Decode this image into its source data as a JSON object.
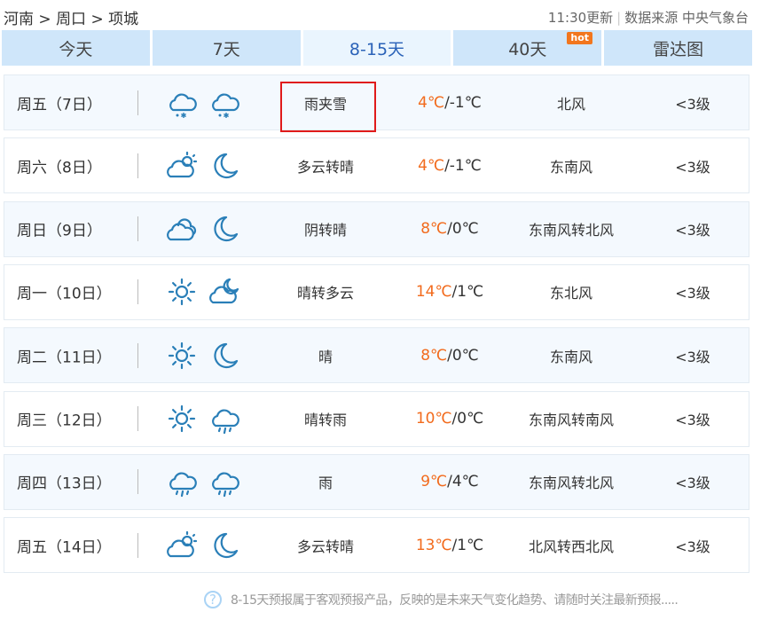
{
  "breadcrumb": {
    "province": "河南",
    "city": "周口",
    "county": "项城",
    "sep": ">"
  },
  "source": {
    "update": "11:30更新",
    "text": "数据来源 中央气象台"
  },
  "tabs": [
    {
      "label": "今天"
    },
    {
      "label": "7天"
    },
    {
      "label": "8-15天",
      "active": true
    },
    {
      "label": "40天",
      "badge": "hot"
    },
    {
      "label": "雷达图"
    }
  ],
  "colors": {
    "accent": "#2a62b8",
    "high_temp": "#f26b1d",
    "tab_bg": "#cfe6fa",
    "highlight": "#e01b1b"
  },
  "rows": [
    {
      "day": "周五（7日）",
      "icons": [
        "snow-rain",
        "snow-rain"
      ],
      "weather": "雨夹雪",
      "high": "4℃",
      "low": "/-1℃",
      "wind": "北风",
      "level": "<3级"
    },
    {
      "day": "周六（8日）",
      "icons": [
        "partly-cloudy",
        "moon"
      ],
      "weather": "多云转晴",
      "high": "4℃",
      "low": "/-1℃",
      "wind": "东南风",
      "level": "<3级"
    },
    {
      "day": "周日（9日）",
      "icons": [
        "overcast",
        "moon"
      ],
      "weather": "阴转晴",
      "high": "8℃",
      "low": "/0℃",
      "wind": "东南风转北风",
      "level": "<3级"
    },
    {
      "day": "周一（10日）",
      "icons": [
        "sun",
        "cloud-moon"
      ],
      "weather": "晴转多云",
      "high": "14℃",
      "low": "/1℃",
      "wind": "东北风",
      "level": "<3级"
    },
    {
      "day": "周二（11日）",
      "icons": [
        "sun",
        "moon"
      ],
      "weather": "晴",
      "high": "8℃",
      "low": "/0℃",
      "wind": "东南风",
      "level": "<3级"
    },
    {
      "day": "周三（12日）",
      "icons": [
        "sun",
        "rain"
      ],
      "weather": "晴转雨",
      "high": "10℃",
      "low": "/0℃",
      "wind": "东南风转南风",
      "level": "<3级"
    },
    {
      "day": "周四（13日）",
      "icons": [
        "rain",
        "rain"
      ],
      "weather": "雨",
      "high": "9℃",
      "low": "/4℃",
      "wind": "东南风转北风",
      "level": "<3级"
    },
    {
      "day": "周五（14日）",
      "icons": [
        "partly-cloudy",
        "moon"
      ],
      "weather": "多云转晴",
      "high": "13℃",
      "low": "/1℃",
      "wind": "北风转西北风",
      "level": "<3级"
    }
  ],
  "footer": {
    "text": "8-15天预报属于客观预报产品，反映的是未来天气变化趋势、请随时关注最新预报....."
  }
}
